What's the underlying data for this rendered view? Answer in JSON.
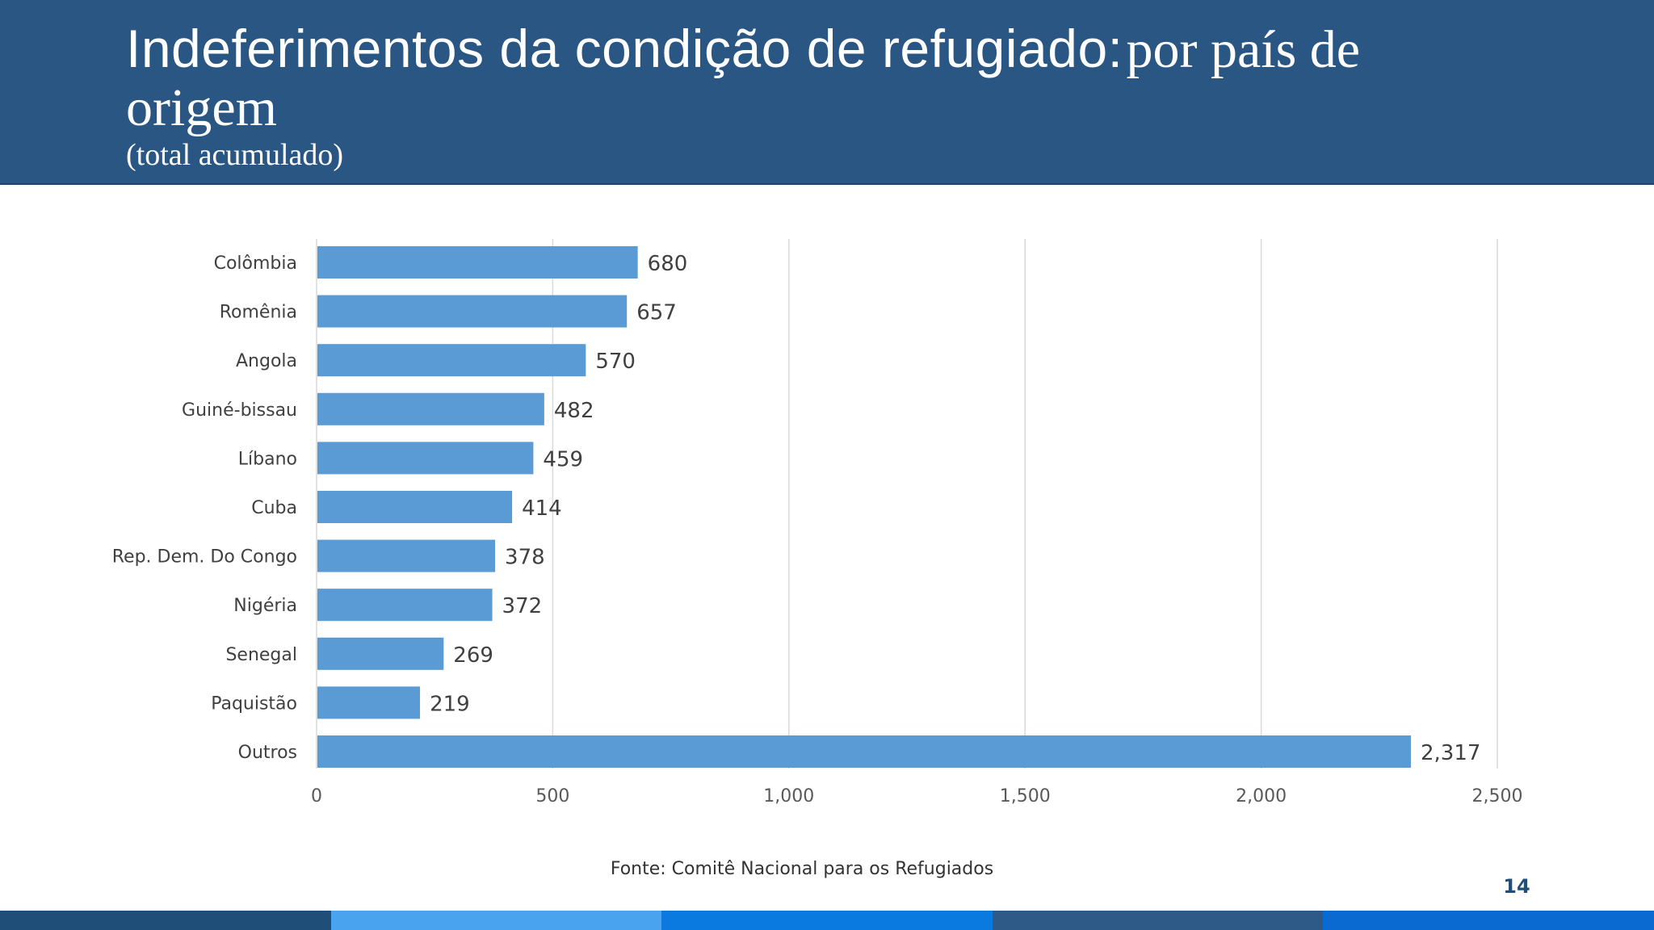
{
  "slide": {
    "title_main": "Indeferimentos da condição de refugiado:",
    "title_tail": "por país de",
    "title_line2": "origem",
    "subtitle": "(total acumulado)",
    "source": "Fonte: Comitê Nacional para os Refugiados",
    "page_number": "14"
  },
  "colors": {
    "header_bg": "#2a5683",
    "bar": "#5b9bd5",
    "grid": "#d9d9d9",
    "text": "#404040",
    "footer": [
      "#1f4e79",
      "#4aa3ef",
      "#0a7ae0",
      "#2d5a87",
      "#0a6ad2"
    ]
  },
  "chart_data": {
    "type": "bar",
    "orientation": "horizontal",
    "title": "",
    "xlabel": "",
    "ylabel": "",
    "categories": [
      "Colômbia",
      "Romênia",
      "Angola",
      "Guiné-bissau",
      "Líbano",
      "Cuba",
      "Rep. Dem. Do Congo",
      "Nigéria",
      "Senegal",
      "Paquistão",
      "Outros"
    ],
    "values": [
      680,
      657,
      570,
      482,
      459,
      414,
      378,
      372,
      269,
      219,
      2317
    ],
    "value_labels": [
      "680",
      "657",
      "570",
      "482",
      "459",
      "414",
      "378",
      "372",
      "269",
      "219",
      "2,317"
    ],
    "xlim": [
      0,
      2500
    ],
    "x_ticks": [
      0,
      500,
      1000,
      1500,
      2000,
      2500
    ],
    "x_tick_labels": [
      "0",
      "500",
      "1,000",
      "1,500",
      "2,000",
      "2,500"
    ],
    "grid": "vertical",
    "legend": "none"
  }
}
